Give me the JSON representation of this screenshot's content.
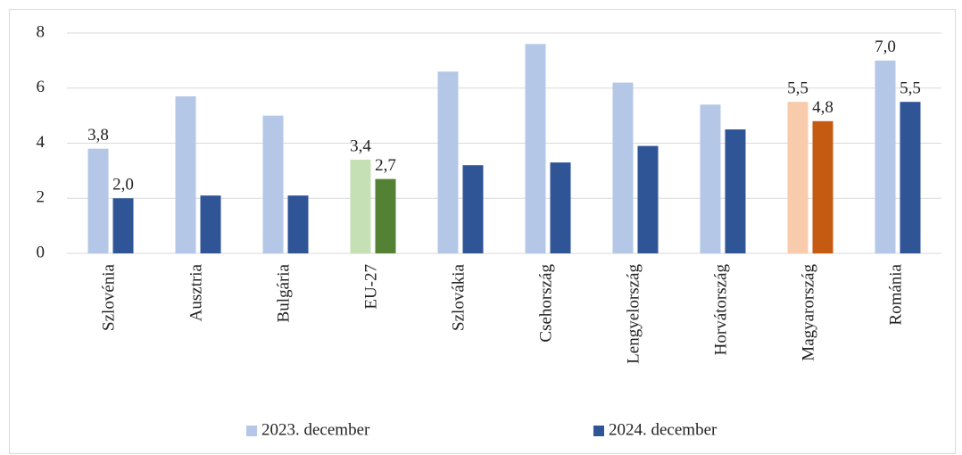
{
  "chart_data": {
    "type": "bar",
    "categories": [
      "Szlovénia",
      "Ausztria",
      "Bulgária",
      "EU-27",
      "Szlovákia",
      "Csehország",
      "Lengyelország",
      "Horvátország",
      "Magyarország",
      "Románia"
    ],
    "series": [
      {
        "name": "2023. december",
        "color": "#b4c7e7",
        "colors": [
          "#b4c7e7",
          "#b4c7e7",
          "#b4c7e7",
          "#c5e0b4",
          "#b4c7e7",
          "#b4c7e7",
          "#b4c7e7",
          "#b4c7e7",
          "#f8cbad",
          "#b4c7e7"
        ],
        "values": [
          3.8,
          5.7,
          5.0,
          3.4,
          6.6,
          7.6,
          6.2,
          5.4,
          5.5,
          7.0
        ],
        "value_labels": [
          "3,8",
          null,
          null,
          "3,4",
          null,
          null,
          null,
          null,
          "5,5",
          "7,0"
        ]
      },
      {
        "name": "2024. december",
        "color": "#2f5597",
        "colors": [
          "#2f5597",
          "#2f5597",
          "#2f5597",
          "#548235",
          "#2f5597",
          "#2f5597",
          "#2f5597",
          "#2f5597",
          "#c55a11",
          "#2f5597"
        ],
        "values": [
          2.0,
          2.1,
          2.1,
          2.7,
          3.2,
          3.3,
          3.9,
          4.5,
          4.8,
          5.5
        ],
        "value_labels": [
          "2,0",
          null,
          null,
          "2,7",
          null,
          null,
          null,
          null,
          "4,8",
          "5,5"
        ]
      }
    ],
    "ylim": [
      0,
      8
    ],
    "yticks": [
      0,
      2,
      4,
      6,
      8
    ],
    "grid": true,
    "legend": "bottom"
  }
}
